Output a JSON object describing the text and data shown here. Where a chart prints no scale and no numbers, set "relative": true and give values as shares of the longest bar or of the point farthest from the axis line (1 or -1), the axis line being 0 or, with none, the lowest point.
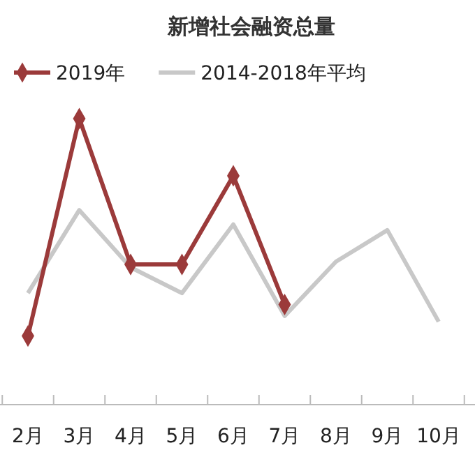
{
  "chart_data": {
    "type": "line",
    "title": "新增社会融资总量",
    "relative": true,
    "legend": "top left",
    "categories": [
      "2月",
      "3月",
      "4月",
      "5月",
      "6月",
      "7月",
      "8月",
      "9月",
      "10月"
    ],
    "series": [
      {
        "name": "2019年",
        "color": "#9b3a3a",
        "marker": "diamond",
        "values": [
          0.24,
          1,
          0.49,
          0.49,
          0.8,
          0.35,
          null,
          null,
          null
        ]
      },
      {
        "name": "2014-2018年平均",
        "color": "#c8c8c8",
        "marker": "none",
        "values": [
          0.39,
          0.68,
          0.48,
          0.39,
          0.63,
          0.31,
          0.5,
          0.61,
          0.29
        ]
      }
    ]
  }
}
